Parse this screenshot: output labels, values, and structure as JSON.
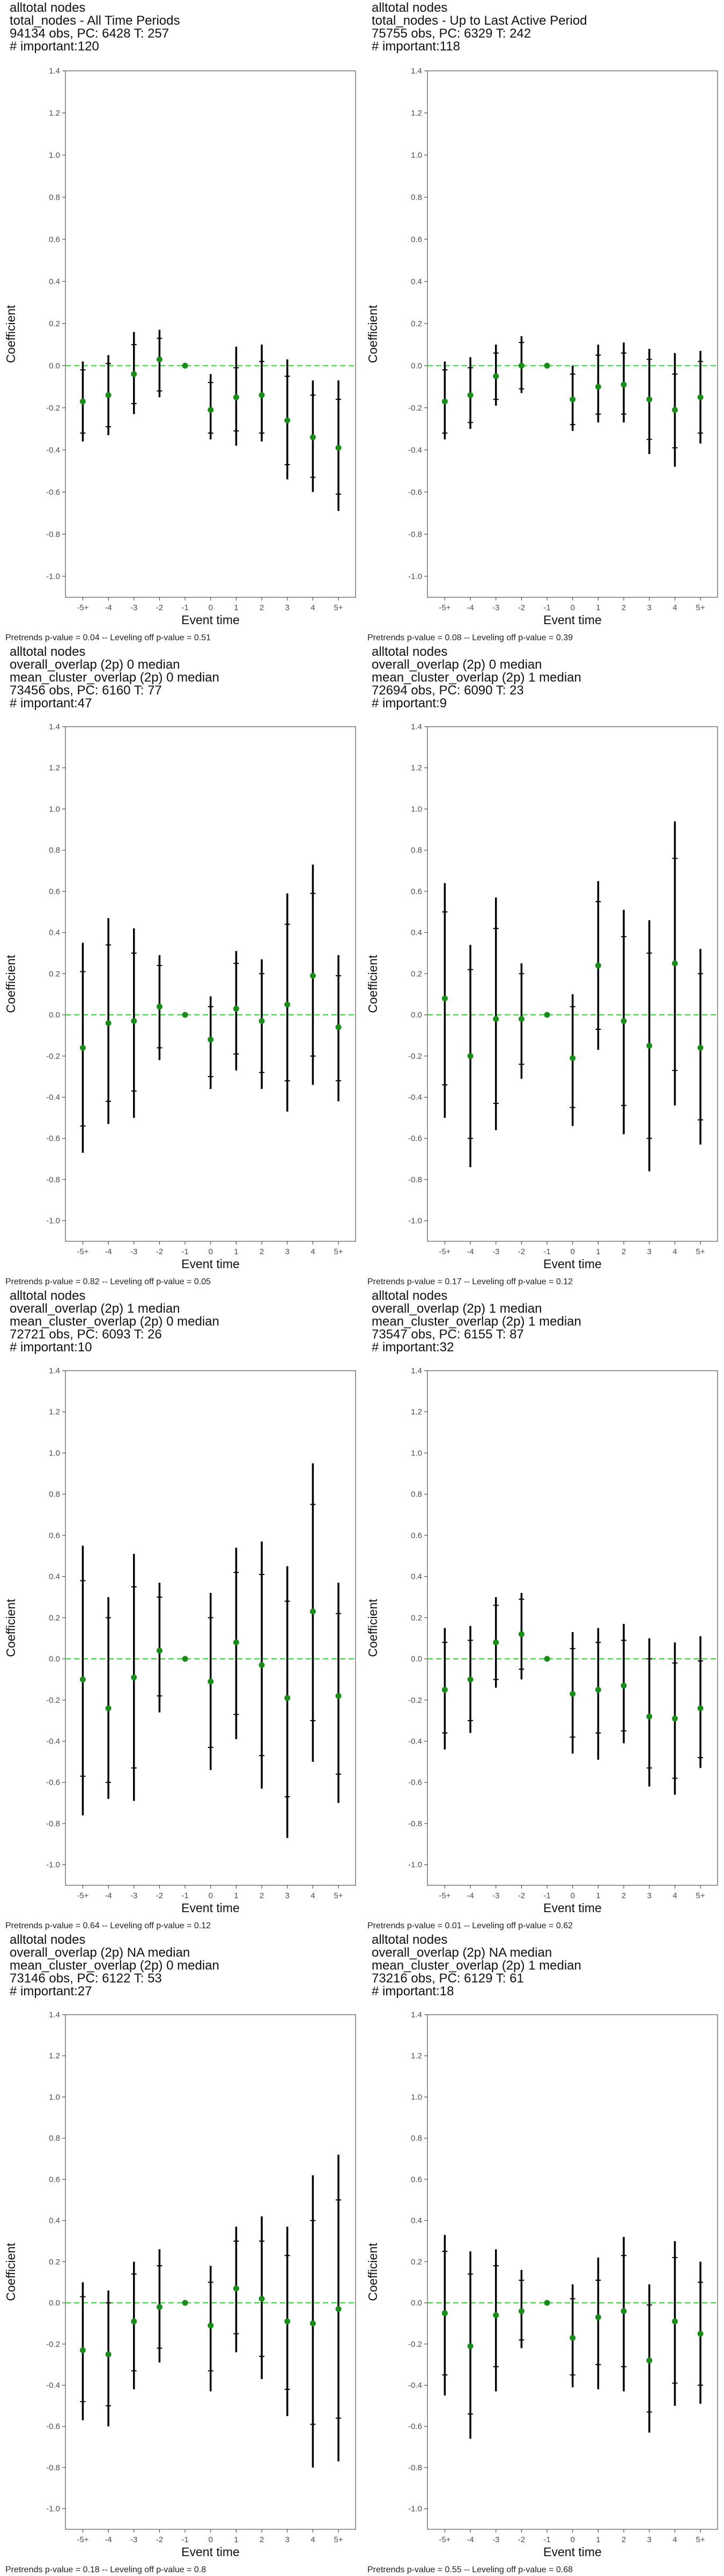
{
  "y_ticks": [
    "1.4",
    "1.2",
    "1.0",
    "0.8",
    "0.6",
    "0.4",
    "0.2",
    "0.0",
    "-0.2",
    "-0.4",
    "-0.6",
    "-0.8",
    "-1.0"
  ],
  "colors": {
    "point": "#1a8c1a",
    "zero_line": "#33d633",
    "ci": "#000000"
  },
  "chart_data": [
    {
      "type": "scatter",
      "title_lines": [
        "alltotal nodes",
        "total_nodes - All Time Periods",
        "94134 obs, PC: 6428 T: 257",
        "# important:120"
      ],
      "xlabel": "Event time",
      "ylabel": "Coefficient",
      "categories": [
        "-5+",
        "-4",
        "-3",
        "-2",
        "-1",
        "0",
        "1",
        "2",
        "3",
        "4",
        "5+"
      ],
      "ylim": [
        -1.1,
        1.4
      ],
      "grid": false,
      "estimates": [
        -0.17,
        -0.14,
        -0.04,
        0.03,
        0.0,
        -0.21,
        -0.15,
        -0.14,
        -0.26,
        -0.34,
        -0.39
      ],
      "ci_inner": [
        [
          -0.32,
          -0.02
        ],
        [
          -0.29,
          0.01
        ],
        [
          -0.18,
          0.1
        ],
        [
          -0.12,
          0.13
        ],
        null,
        [
          -0.32,
          -0.08
        ],
        [
          -0.31,
          -0.01
        ],
        [
          -0.32,
          0.02
        ],
        [
          -0.47,
          -0.05
        ],
        [
          -0.53,
          -0.14
        ],
        [
          -0.61,
          -0.16
        ]
      ],
      "ci_outer": [
        [
          -0.36,
          0.02
        ],
        [
          -0.33,
          0.05
        ],
        [
          -0.23,
          0.16
        ],
        [
          -0.15,
          0.17
        ],
        null,
        [
          -0.35,
          -0.04
        ],
        [
          -0.38,
          0.09
        ],
        [
          -0.36,
          0.1
        ],
        [
          -0.54,
          0.03
        ],
        [
          -0.6,
          -0.07
        ],
        [
          -0.69,
          -0.07
        ]
      ],
      "caption": "Pretrends p-value = 0.04 -- Leveling off p-value = 0.51"
    },
    {
      "type": "scatter",
      "title_lines": [
        "alltotal nodes",
        "total_nodes - Up to Last Active Period",
        "75755 obs, PC: 6329 T: 242",
        "# important:118"
      ],
      "xlabel": "Event time",
      "ylabel": "Coefficient",
      "categories": [
        "-5+",
        "-4",
        "-3",
        "-2",
        "-1",
        "0",
        "1",
        "2",
        "3",
        "4",
        "5+"
      ],
      "ylim": [
        -1.1,
        1.4
      ],
      "grid": false,
      "estimates": [
        -0.17,
        -0.14,
        -0.05,
        0.0,
        0.0,
        -0.16,
        -0.1,
        -0.09,
        -0.16,
        -0.21,
        -0.15
      ],
      "ci_inner": [
        [
          -0.32,
          -0.02
        ],
        [
          -0.27,
          -0.01
        ],
        [
          -0.16,
          0.06
        ],
        [
          -0.11,
          0.11
        ],
        null,
        [
          -0.28,
          -0.04
        ],
        [
          -0.23,
          0.05
        ],
        [
          -0.23,
          0.06
        ],
        [
          -0.35,
          0.03
        ],
        [
          -0.39,
          -0.04
        ],
        [
          -0.32,
          0.02
        ]
      ],
      "ci_outer": [
        [
          -0.35,
          0.02
        ],
        [
          -0.3,
          0.04
        ],
        [
          -0.19,
          0.1
        ],
        [
          -0.13,
          0.14
        ],
        null,
        [
          -0.31,
          0.0
        ],
        [
          -0.27,
          0.1
        ],
        [
          -0.27,
          0.11
        ],
        [
          -0.42,
          0.08
        ],
        [
          -0.48,
          0.06
        ],
        [
          -0.37,
          0.07
        ]
      ],
      "caption": "Pretrends p-value = 0.08 -- Leveling off p-value = 0.39"
    },
    {
      "type": "scatter",
      "title_lines": [
        "alltotal nodes",
        "overall_overlap (2p) 0 median",
        "mean_cluster_overlap (2p) 0 median",
        "73456 obs, PC: 6160 T: 77",
        "# important:47"
      ],
      "xlabel": "Event time",
      "ylabel": "Coefficient",
      "categories": [
        "-5+",
        "-4",
        "-3",
        "-2",
        "-1",
        "0",
        "1",
        "2",
        "3",
        "4",
        "5+"
      ],
      "ylim": [
        -1.1,
        1.4
      ],
      "grid": false,
      "estimates": [
        -0.16,
        -0.04,
        -0.03,
        0.04,
        0.0,
        -0.12,
        0.03,
        -0.03,
        0.05,
        0.19,
        -0.06
      ],
      "ci_inner": [
        [
          -0.54,
          0.21
        ],
        [
          -0.42,
          0.34
        ],
        [
          -0.37,
          0.3
        ],
        [
          -0.16,
          0.24
        ],
        null,
        [
          -0.3,
          0.04
        ],
        [
          -0.19,
          0.25
        ],
        [
          -0.28,
          0.2
        ],
        [
          -0.32,
          0.44
        ],
        [
          -0.2,
          0.59
        ],
        [
          -0.32,
          0.19
        ]
      ],
      "ci_outer": [
        [
          -0.67,
          0.35
        ],
        [
          -0.53,
          0.47
        ],
        [
          -0.5,
          0.42
        ],
        [
          -0.22,
          0.29
        ],
        null,
        [
          -0.36,
          0.09
        ],
        [
          -0.27,
          0.31
        ],
        [
          -0.36,
          0.27
        ],
        [
          -0.47,
          0.59
        ],
        [
          -0.34,
          0.73
        ],
        [
          -0.42,
          0.29
        ]
      ],
      "caption": "Pretrends p-value = 0.82 -- Leveling off p-value = 0.05"
    },
    {
      "type": "scatter",
      "title_lines": [
        "alltotal nodes",
        "overall_overlap (2p) 0 median",
        "mean_cluster_overlap (2p) 1 median",
        "72694 obs, PC: 6090 T: 23",
        "# important:9"
      ],
      "xlabel": "Event time",
      "ylabel": "Coefficient",
      "categories": [
        "-5+",
        "-4",
        "-3",
        "-2",
        "-1",
        "0",
        "1",
        "2",
        "3",
        "4",
        "5+"
      ],
      "ylim": [
        -1.1,
        1.4
      ],
      "grid": false,
      "estimates": [
        0.08,
        -0.2,
        -0.02,
        -0.02,
        0.0,
        -0.21,
        0.24,
        -0.03,
        -0.15,
        0.25,
        -0.16
      ],
      "ci_inner": [
        [
          -0.34,
          0.5
        ],
        [
          -0.6,
          0.22
        ],
        [
          -0.43,
          0.42
        ],
        [
          -0.24,
          0.2
        ],
        null,
        [
          -0.45,
          0.04
        ],
        [
          -0.07,
          0.55
        ],
        [
          -0.44,
          0.38
        ],
        [
          -0.6,
          0.3
        ],
        [
          -0.27,
          0.76
        ],
        [
          -0.51,
          0.2
        ]
      ],
      "ci_outer": [
        [
          -0.5,
          0.64
        ],
        [
          -0.74,
          0.34
        ],
        [
          -0.56,
          0.57
        ],
        [
          -0.31,
          0.25
        ],
        null,
        [
          -0.54,
          0.1
        ],
        [
          -0.17,
          0.65
        ],
        [
          -0.58,
          0.51
        ],
        [
          -0.76,
          0.46
        ],
        [
          -0.44,
          0.94
        ],
        [
          -0.63,
          0.32
        ]
      ],
      "caption": "Pretrends p-value = 0.17 -- Leveling off p-value = 0.12"
    },
    {
      "type": "scatter",
      "title_lines": [
        "alltotal nodes",
        "overall_overlap (2p) 1 median",
        "mean_cluster_overlap (2p) 0 median",
        "72721 obs, PC: 6093 T: 26",
        "# important:10"
      ],
      "xlabel": "Event time",
      "ylabel": "Coefficient",
      "categories": [
        "-5+",
        "-4",
        "-3",
        "-2",
        "-1",
        "0",
        "1",
        "2",
        "3",
        "4",
        "5+"
      ],
      "ylim": [
        -1.1,
        1.4
      ],
      "grid": false,
      "estimates": [
        -0.1,
        -0.24,
        -0.09,
        0.04,
        0.0,
        -0.11,
        0.08,
        -0.03,
        -0.19,
        0.23,
        -0.18
      ],
      "ci_inner": [
        [
          -0.57,
          0.38
        ],
        [
          -0.6,
          0.2
        ],
        [
          -0.53,
          0.35
        ],
        [
          -0.18,
          0.3
        ],
        null,
        [
          -0.43,
          0.2
        ],
        [
          -0.27,
          0.42
        ],
        [
          -0.47,
          0.41
        ],
        [
          -0.67,
          0.28
        ],
        [
          -0.3,
          0.75
        ],
        [
          -0.56,
          0.22
        ]
      ],
      "ci_outer": [
        [
          -0.76,
          0.55
        ],
        [
          -0.68,
          0.3
        ],
        [
          -0.69,
          0.51
        ],
        [
          -0.26,
          0.37
        ],
        null,
        [
          -0.54,
          0.32
        ],
        [
          -0.39,
          0.54
        ],
        [
          -0.63,
          0.57
        ],
        [
          -0.87,
          0.45
        ],
        [
          -0.5,
          0.95
        ],
        [
          -0.7,
          0.37
        ]
      ],
      "caption": "Pretrends p-value = 0.64 -- Leveling off p-value = 0.12"
    },
    {
      "type": "scatter",
      "title_lines": [
        "alltotal nodes",
        "overall_overlap (2p) 1 median",
        "mean_cluster_overlap (2p) 1 median",
        "73547 obs, PC: 6155 T: 87",
        "# important:32"
      ],
      "xlabel": "Event time",
      "ylabel": "Coefficient",
      "categories": [
        "-5+",
        "-4",
        "-3",
        "-2",
        "-1",
        "0",
        "1",
        "2",
        "3",
        "4",
        "5+"
      ],
      "ylim": [
        -1.1,
        1.4
      ],
      "grid": false,
      "estimates": [
        -0.15,
        -0.1,
        0.08,
        0.12,
        0.0,
        -0.17,
        -0.15,
        -0.13,
        -0.28,
        -0.29,
        -0.24
      ],
      "ci_inner": [
        [
          -0.36,
          0.08
        ],
        [
          -0.3,
          0.09
        ],
        [
          -0.1,
          0.26
        ],
        [
          -0.05,
          0.29
        ],
        null,
        [
          -0.38,
          0.05
        ],
        [
          -0.36,
          0.08
        ],
        [
          -0.35,
          0.09
        ],
        [
          -0.53,
          0.0
        ],
        [
          -0.58,
          -0.02
        ],
        [
          -0.48,
          -0.01
        ]
      ],
      "ci_outer": [
        [
          -0.44,
          0.15
        ],
        [
          -0.36,
          0.16
        ],
        [
          -0.14,
          0.3
        ],
        [
          -0.1,
          0.32
        ],
        null,
        [
          -0.46,
          0.13
        ],
        [
          -0.49,
          0.15
        ],
        [
          -0.41,
          0.17
        ],
        [
          -0.62,
          0.1
        ],
        [
          -0.66,
          0.08
        ],
        [
          -0.53,
          0.11
        ]
      ],
      "caption": "Pretrends p-value = 0.01 -- Leveling off p-value = 0.62"
    },
    {
      "type": "scatter",
      "title_lines": [
        "alltotal nodes",
        "overall_overlap (2p) NA median",
        "mean_cluster_overlap (2p) 0 median",
        "73146 obs, PC: 6122 T: 53",
        "# important:27"
      ],
      "xlabel": "Event time",
      "ylabel": "Coefficient",
      "categories": [
        "-5+",
        "-4",
        "-3",
        "-2",
        "-1",
        "0",
        "1",
        "2",
        "3",
        "4",
        "5+"
      ],
      "ylim": [
        -1.1,
        1.4
      ],
      "grid": false,
      "estimates": [
        -0.23,
        -0.25,
        -0.09,
        -0.02,
        0.0,
        -0.11,
        0.07,
        0.02,
        -0.09,
        -0.1,
        -0.03
      ],
      "ci_inner": [
        [
          -0.48,
          0.03
        ],
        [
          -0.5,
          0.0
        ],
        [
          -0.33,
          0.14
        ],
        [
          -0.22,
          0.18
        ],
        null,
        [
          -0.33,
          0.1
        ],
        [
          -0.15,
          0.3
        ],
        [
          -0.26,
          0.3
        ],
        [
          -0.42,
          0.23
        ],
        [
          -0.59,
          0.4
        ],
        [
          -0.56,
          0.5
        ]
      ],
      "ci_outer": [
        [
          -0.57,
          0.1
        ],
        [
          -0.6,
          0.06
        ],
        [
          -0.42,
          0.2
        ],
        [
          -0.29,
          0.26
        ],
        null,
        [
          -0.43,
          0.18
        ],
        [
          -0.24,
          0.37
        ],
        [
          -0.37,
          0.42
        ],
        [
          -0.55,
          0.37
        ],
        [
          -0.8,
          0.62
        ],
        [
          -0.77,
          0.72
        ]
      ],
      "caption": "Pretrends p-value = 0.18 -- Leveling off p-value = 0.8"
    },
    {
      "type": "scatter",
      "title_lines": [
        "alltotal nodes",
        "overall_overlap (2p) NA median",
        "mean_cluster_overlap (2p) 1 median",
        "73216 obs, PC: 6129 T: 61",
        "# important:18"
      ],
      "xlabel": "Event time",
      "ylabel": "Coefficient",
      "categories": [
        "-5+",
        "-4",
        "-3",
        "-2",
        "-1",
        "0",
        "1",
        "2",
        "3",
        "4",
        "5+"
      ],
      "ylim": [
        -1.1,
        1.4
      ],
      "grid": false,
      "estimates": [
        -0.05,
        -0.21,
        -0.06,
        -0.04,
        0.0,
        -0.17,
        -0.07,
        -0.04,
        -0.28,
        -0.09,
        -0.15
      ],
      "ci_inner": [
        [
          -0.35,
          0.25
        ],
        [
          -0.54,
          0.14
        ],
        [
          -0.31,
          0.18
        ],
        [
          -0.18,
          0.11
        ],
        null,
        [
          -0.35,
          0.02
        ],
        [
          -0.3,
          0.11
        ],
        [
          -0.31,
          0.23
        ],
        [
          -0.53,
          -0.01
        ],
        [
          -0.39,
          0.22
        ],
        [
          -0.4,
          0.1
        ]
      ],
      "ci_outer": [
        [
          -0.45,
          0.33
        ],
        [
          -0.66,
          0.25
        ],
        [
          -0.43,
          0.26
        ],
        [
          -0.22,
          0.16
        ],
        null,
        [
          -0.41,
          0.09
        ],
        [
          -0.42,
          0.22
        ],
        [
          -0.43,
          0.32
        ],
        [
          -0.63,
          0.09
        ],
        [
          -0.5,
          0.3
        ],
        [
          -0.49,
          0.2
        ]
      ],
      "caption": "Pretrends p-value = 0.55 -- Leveling off p-value = 0.68"
    }
  ]
}
